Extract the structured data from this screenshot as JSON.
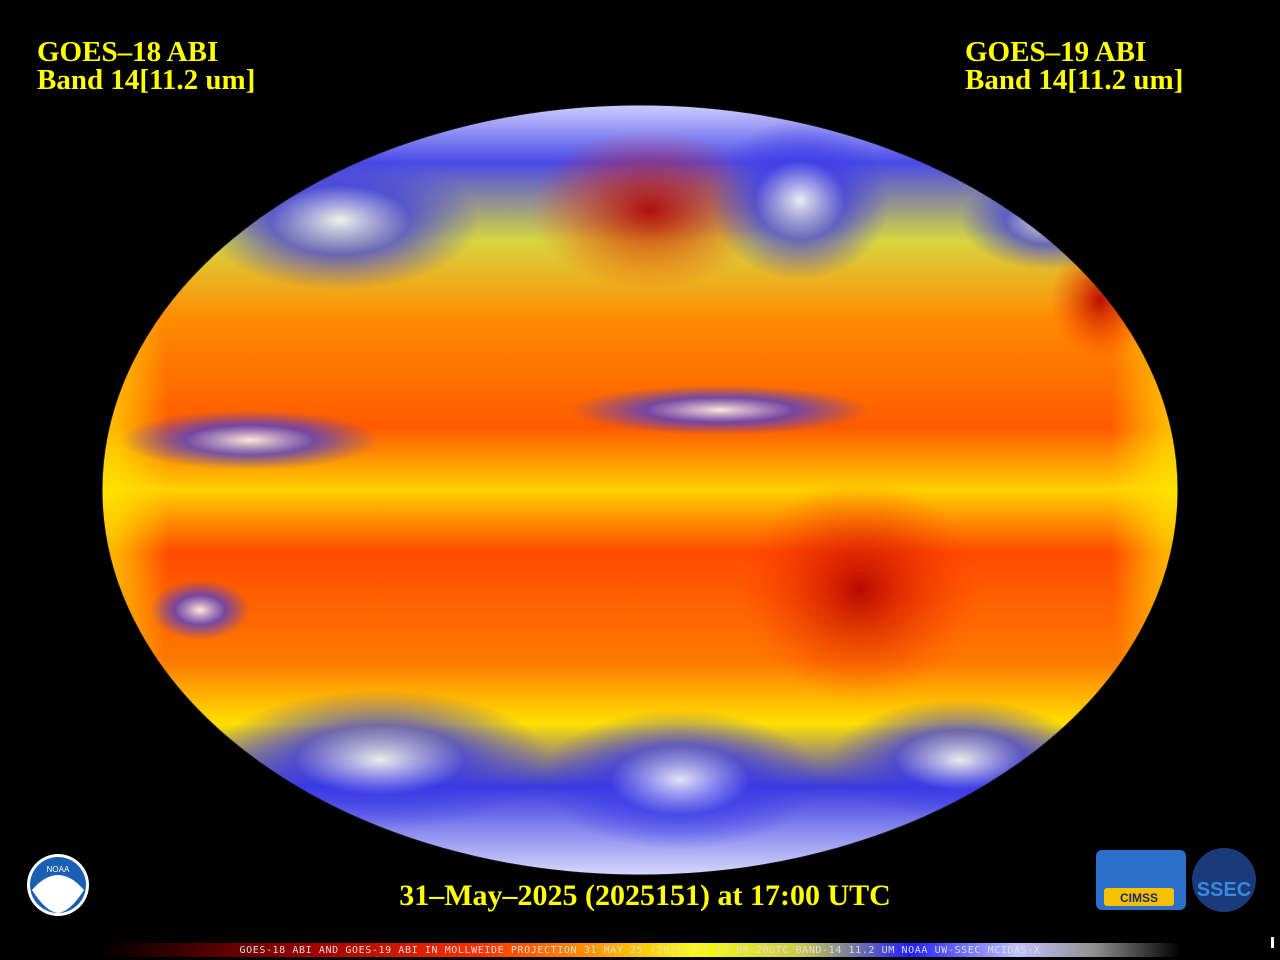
{
  "header": {
    "left": {
      "line1": "GOES–18 ABI",
      "line2": "Band 14[11.2 um]"
    },
    "right": {
      "line1": "GOES–19 ABI",
      "line2": "Band 14[11.2 um]"
    }
  },
  "timestamp": "31–May–2025 (2025151) at 17:00 UTC",
  "footer": "GOES-18 ABI AND GOES-19 ABI IN MOLLWEIDE PROJECTION 31 MAY 25 (2025151) 17:00:20UTC BAND-14 11.2 UM NOAA UW-SSEC MCIDAS-X",
  "logos": {
    "noaa": "NOAA",
    "cimss": "CIMSS",
    "ssec": "SSEC"
  }
}
